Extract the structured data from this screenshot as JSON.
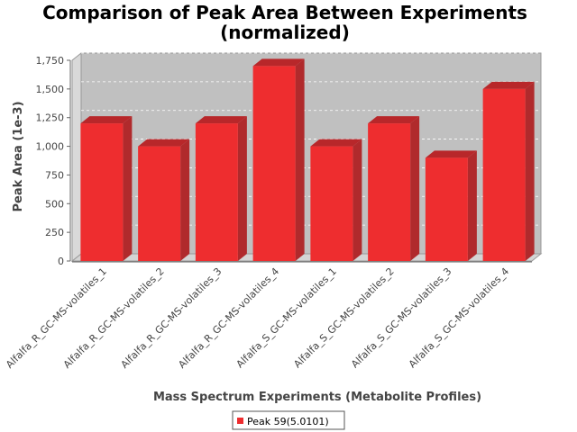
{
  "chart_data": {
    "type": "bar",
    "title": "Comparison of Peak Area Between Experiments",
    "subtitle": "(normalized)",
    "xlabel": "Mass Spectrum Experiments (Metabolite Profiles)",
    "ylabel": "Peak Area (1e-3)",
    "ylim": [
      0,
      1750
    ],
    "yticks": [
      "0",
      "250",
      "500",
      "750",
      "1,000",
      "1,250",
      "1,500",
      "1,750"
    ],
    "categories": [
      "Alfalfa_R_GC-MS-volatiles_1",
      "Alfalfa_R_GC-MS-volatiles_2",
      "Alfalfa_R_GC-MS-volatiles_3",
      "Alfalfa_R_GC-MS-volatiles_4",
      "Alfalfa_S_GC-MS-volatiles_1",
      "Alfalfa_S_GC-MS-volatiles_2",
      "Alfalfa_S_GC-MS-volatiles_3",
      "Alfalfa_S_GC-MS-volatiles_4"
    ],
    "series": [
      {
        "name": "Peak 59(5.0101)",
        "color": "#ee2d2f",
        "values": [
          1200,
          1000,
          1200,
          1700,
          1000,
          1200,
          900,
          1500
        ]
      }
    ],
    "grid": true,
    "legend": "bottom-center",
    "style": "3d"
  },
  "colors": {
    "plot_background": "#c0c0c0",
    "bar_front": "#ee2d2f",
    "bar_top": "#b8272a",
    "bar_side": "#b02a2c"
  }
}
